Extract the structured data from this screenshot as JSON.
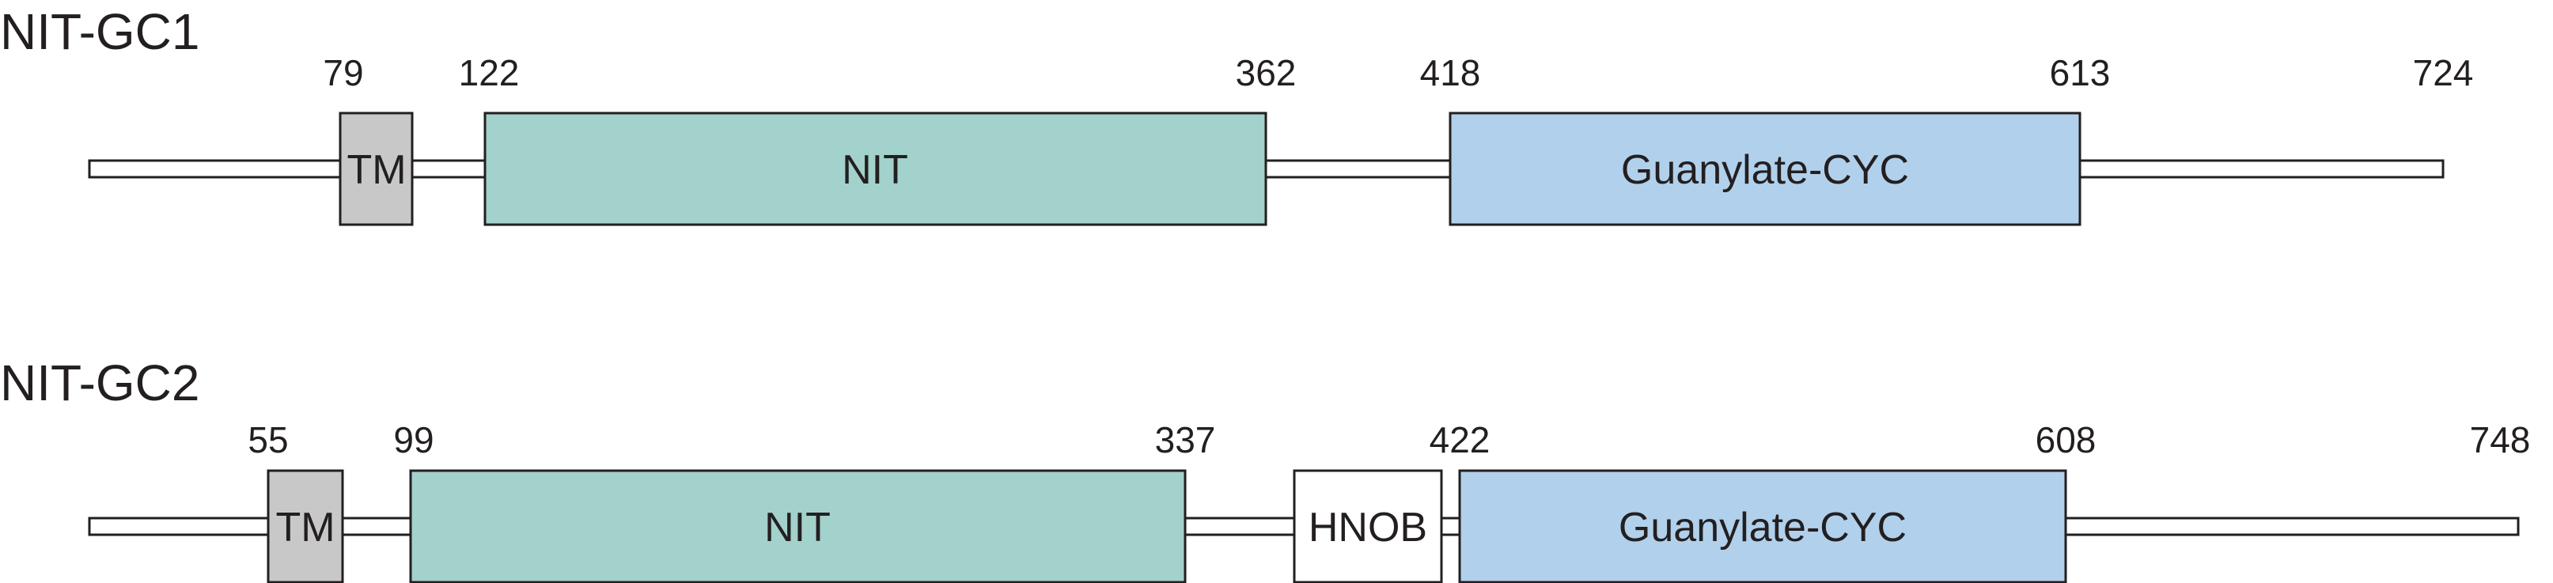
{
  "colors": {
    "TM": "#c8c8c8",
    "NIT": "#a3d1cb",
    "HNOB": "#ffffff",
    "Guanylate-CYC": "#b1d0eb",
    "outline": "#231f20",
    "backbone_fill": "#ffffff"
  },
  "proteins": [
    {
      "name": "NIT-GC1",
      "length": 724,
      "length_label": "724",
      "domains": [
        {
          "type": "TM",
          "label": "TM",
          "start": 79,
          "end": null,
          "start_label": "79"
        },
        {
          "type": "NIT",
          "label": "NIT",
          "start": 122,
          "end": 362,
          "start_label": "122",
          "end_label": "362"
        },
        {
          "type": "Guanylate-CYC",
          "label": "Guanylate-CYC",
          "start": 418,
          "end": 613,
          "start_label": "418",
          "end_label": "613"
        }
      ]
    },
    {
      "name": "NIT-GC2",
      "length": 748,
      "length_label": "748",
      "domains": [
        {
          "type": "TM",
          "label": "TM",
          "start": 55,
          "end": null,
          "start_label": "55"
        },
        {
          "type": "NIT",
          "label": "NIT",
          "start": 99,
          "end": 337,
          "start_label": "99",
          "end_label": "337"
        },
        {
          "type": "HNOB",
          "label": "HNOB",
          "start": null,
          "end": null
        },
        {
          "type": "Guanylate-CYC",
          "label": "Guanylate-CYC",
          "start": 422,
          "end": 608,
          "start_label": "422",
          "end_label": "608"
        }
      ]
    }
  ]
}
